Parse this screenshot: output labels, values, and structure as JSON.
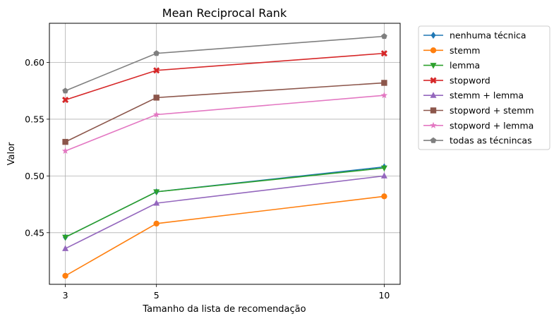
{
  "chart_data": {
    "type": "line",
    "title": "Mean Reciprocal Rank",
    "xlabel": "Tamanho da lista de recomendação",
    "ylabel": "Valor",
    "x": [
      3,
      5,
      10
    ],
    "x_tick_labels": [
      "3",
      "5",
      "10"
    ],
    "y_ticks": [
      0.45,
      0.5,
      0.55,
      0.6
    ],
    "y_tick_labels": [
      "0.45",
      "0.50",
      "0.55",
      "0.60"
    ],
    "ylim": [
      0.4045,
      0.6345
    ],
    "grid": true,
    "legend_position": "outside-right-top",
    "series": [
      {
        "name": "nenhuma técnica",
        "color": "#1f77b4",
        "marker": "diamond",
        "values": [
          0.446,
          0.486,
          0.508
        ]
      },
      {
        "name": "stemm",
        "color": "#ff7f0e",
        "marker": "circle",
        "values": [
          0.412,
          0.458,
          0.482
        ]
      },
      {
        "name": "lemma",
        "color": "#2ca02c",
        "marker": "triangle-down",
        "values": [
          0.446,
          0.486,
          0.507
        ]
      },
      {
        "name": "stopword",
        "color": "#d62728",
        "marker": "x",
        "values": [
          0.567,
          0.593,
          0.608
        ]
      },
      {
        "name": "stemm + lemma",
        "color": "#9467bd",
        "marker": "triangle-up",
        "values": [
          0.436,
          0.476,
          0.5
        ]
      },
      {
        "name": "stopword + stemm",
        "color": "#8c564b",
        "marker": "square",
        "values": [
          0.53,
          0.569,
          0.582
        ]
      },
      {
        "name": "stopword + lemma",
        "color": "#e377c2",
        "marker": "star",
        "values": [
          0.522,
          0.554,
          0.571
        ]
      },
      {
        "name": "todas as técnincas",
        "color": "#7f7f7f",
        "marker": "pentagon",
        "values": [
          0.575,
          0.608,
          0.623
        ]
      }
    ]
  }
}
